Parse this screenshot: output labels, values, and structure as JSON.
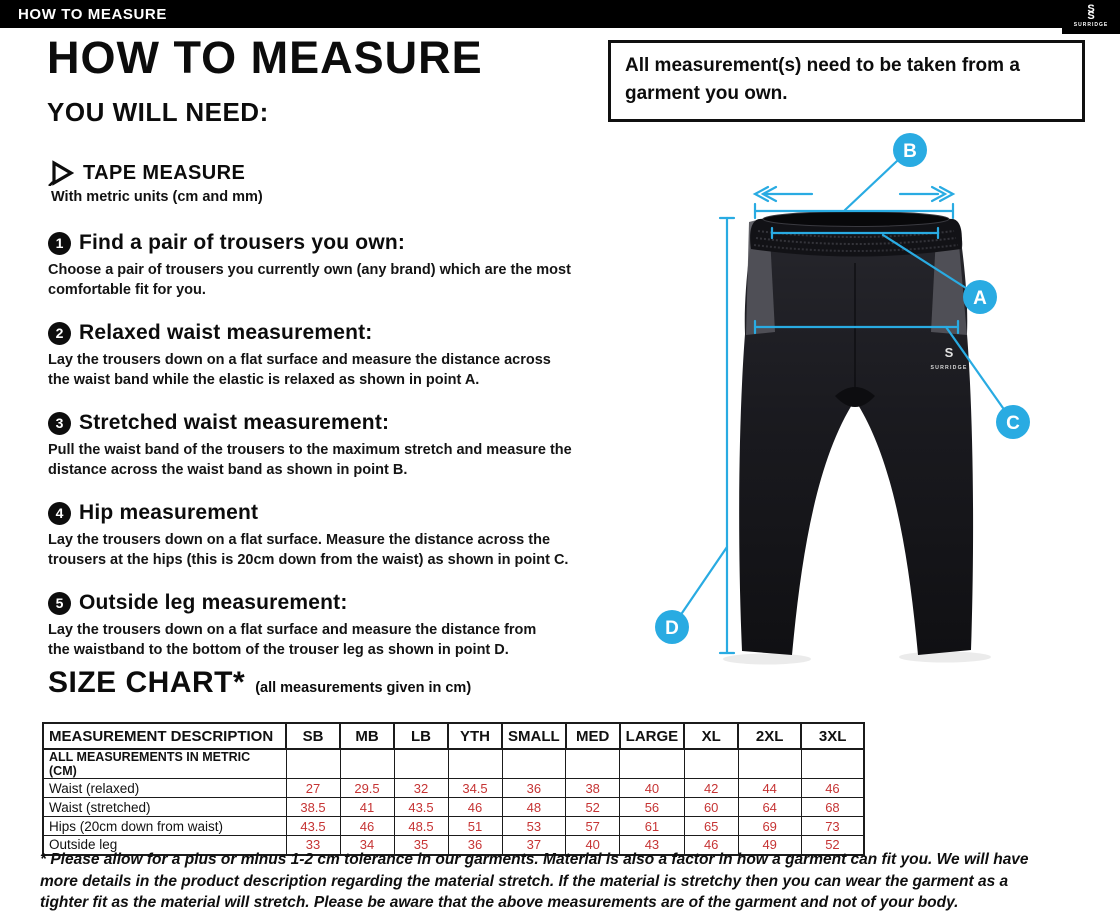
{
  "brand": {
    "logo_glyph": "S",
    "name": "SURRIDGE"
  },
  "top_bar": {
    "title": "HOW TO MEASURE"
  },
  "header": {
    "title": "HOW TO MEASURE",
    "you_will_need": "YOU WILL NEED:"
  },
  "notice": {
    "text": "All measurement(s) need to be taken from a garment you own."
  },
  "tape_measure": {
    "label": "TAPE MEASURE",
    "detail": "With metric units (cm and mm)"
  },
  "steps": [
    {
      "number": "1",
      "title": "Find a pair of trousers you own:",
      "body": "Choose a pair of trousers you currently own (any brand) which are the most\ncomfortable fit for you."
    },
    {
      "number": "2",
      "title": "Relaxed waist measurement:",
      "body": "Lay the trousers down on a flat surface and measure the distance across\nthe waist band while the elastic is relaxed as shown in point A."
    },
    {
      "number": "3",
      "title": "Stretched waist measurement:",
      "body": "Pull the waist band of the trousers to the maximum stretch and measure the\ndistance across the waist band as shown in point B."
    },
    {
      "number": "4",
      "title": "Hip measurement",
      "body": "Lay the trousers down on a flat surface. Measure the distance across the\ntrousers at the hips (this is 20cm down from the waist)  as shown in point C."
    },
    {
      "number": "5",
      "title": "Outside leg measurement:",
      "body": "Lay the trousers down on a flat surface and measure the distance from\nthe waistband to the bottom of the trouser  leg as shown in point D."
    }
  ],
  "size_chart": {
    "title": "SIZE CHART*",
    "subtitle": "(all measurements given in cm)",
    "value_color": "#c63434",
    "table": {
      "headers": [
        "MEASUREMENT DESCRIPTION",
        "SB",
        "MB",
        "LB",
        "YTH",
        "SMALL",
        "MED",
        "LARGE",
        "XL",
        "2XL",
        "3XL"
      ],
      "unit_row_label": "ALL MEASUREMENTS IN METRIC (CM)",
      "rows": [
        {
          "label": "Waist (relaxed)",
          "values": [
            "27",
            "29.5",
            "32",
            "34.5",
            "36",
            "38",
            "40",
            "42",
            "44",
            "46"
          ]
        },
        {
          "label": "Waist (stretched)",
          "values": [
            "38.5",
            "41",
            "43.5",
            "46",
            "48",
            "52",
            "56",
            "60",
            "64",
            "68"
          ]
        },
        {
          "label": "Hips (20cm down from waist)",
          "values": [
            "43.5",
            "46",
            "48.5",
            "51",
            "53",
            "57",
            "61",
            "65",
            "69",
            "73"
          ]
        },
        {
          "label": "Outside leg",
          "values": [
            "33",
            "34",
            "35",
            "36",
            "37",
            "40",
            "43",
            "46",
            "49",
            "52"
          ]
        }
      ]
    }
  },
  "diagram": {
    "accent": "#29ABE2",
    "points": {
      "a": "A",
      "b": "B",
      "c": "C",
      "d": "D"
    }
  },
  "footnote": "* Please allow for a plus or minus 1-2 cm tolerance in our garments. Material is also a factor in how a garment can fit you. We will have\nmore details in the product description regarding the material stretch.  If the material is stretchy then you can wear the garment as a\ntighter fit as the material will stretch.  Please be aware that the above measurements are of the garment and not of your body.",
  "chart_data": {
    "type": "table",
    "title": "SIZE CHART* (all measurements given in cm)",
    "columns": [
      "MEASUREMENT DESCRIPTION",
      "SB",
      "MB",
      "LB",
      "YTH",
      "SMALL",
      "MED",
      "LARGE",
      "XL",
      "2XL",
      "3XL"
    ],
    "rows": [
      [
        "Waist (relaxed)",
        27,
        29.5,
        32,
        34.5,
        36,
        38,
        40,
        42,
        44,
        46
      ],
      [
        "Waist (stretched)",
        38.5,
        41,
        43.5,
        46,
        48,
        52,
        56,
        60,
        64,
        68
      ],
      [
        "Hips (20cm down from waist)",
        43.5,
        46,
        48.5,
        51,
        53,
        57,
        61,
        65,
        69,
        73
      ],
      [
        "Outside leg",
        33,
        34,
        35,
        36,
        37,
        40,
        43,
        46,
        49,
        52
      ]
    ]
  }
}
